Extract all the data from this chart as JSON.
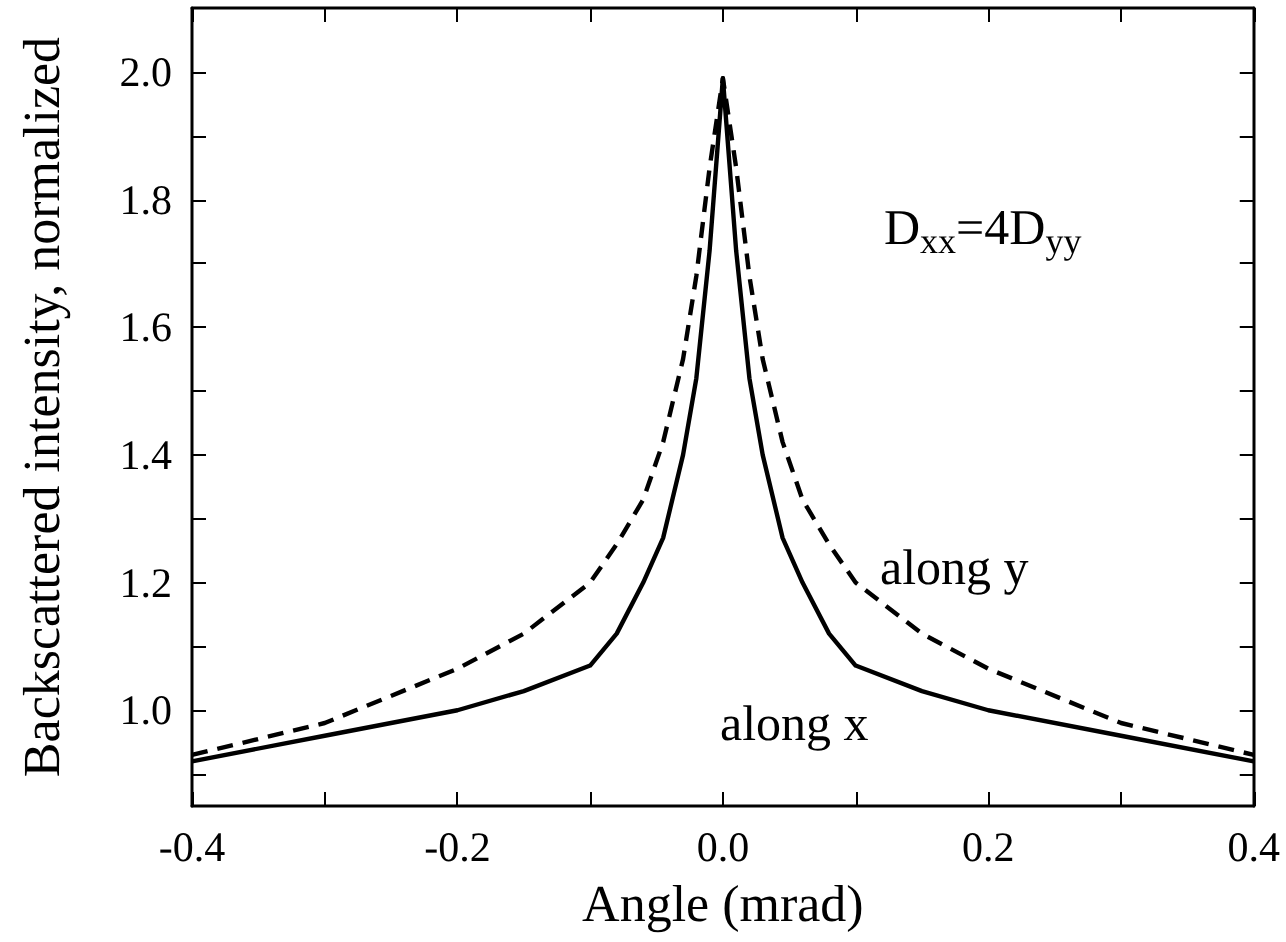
{
  "chart_data": {
    "type": "line",
    "xlabel": "Angle (mrad)",
    "ylabel": "Backscattered intensity, normalized",
    "x": [
      -0.4,
      -0.3,
      -0.2,
      -0.15,
      -0.1,
      -0.08,
      -0.06,
      -0.045,
      -0.03,
      -0.02,
      -0.01,
      0,
      0.01,
      0.02,
      0.03,
      0.045,
      0.06,
      0.08,
      0.1,
      0.15,
      0.2,
      0.3,
      0.4
    ],
    "series": [
      {
        "name": "along x",
        "color": "#000000",
        "line_style": "solid",
        "values": [
          0.92,
          0.96,
          1.0,
          1.03,
          1.07,
          1.12,
          1.2,
          1.27,
          1.4,
          1.52,
          1.72,
          1.99,
          1.72,
          1.52,
          1.4,
          1.27,
          1.2,
          1.12,
          1.07,
          1.03,
          1.0,
          0.96,
          0.92
        ]
      },
      {
        "name": "along y",
        "color": "#000000",
        "line_style": "dashed",
        "values": [
          0.93,
          0.98,
          1.065,
          1.12,
          1.2,
          1.26,
          1.33,
          1.42,
          1.55,
          1.68,
          1.85,
          1.99,
          1.85,
          1.68,
          1.55,
          1.42,
          1.33,
          1.26,
          1.2,
          1.12,
          1.065,
          0.98,
          0.93
        ]
      }
    ],
    "annotations": [
      "D$_{xx}$=4D$_{yy}$"
    ],
    "xlim": [
      -0.4,
      0.4
    ],
    "ylim": [
      0.85,
      2.1
    ],
    "xticks": [
      {
        "value": -0.4,
        "label": "-0.4"
      },
      {
        "value": -0.3,
        "label": null
      },
      {
        "value": -0.2,
        "label": "-0.2"
      },
      {
        "value": -0.1,
        "label": null
      },
      {
        "value": 0,
        "label": "0.0"
      },
      {
        "value": 0.1,
        "label": null
      },
      {
        "value": 0.2,
        "label": "0.2"
      },
      {
        "value": 0.3,
        "label": null
      },
      {
        "value": 0.4,
        "label": "0.4"
      }
    ],
    "yticks": [
      {
        "value": 0.9,
        "label": null
      },
      {
        "value": 1,
        "label": "1.0"
      },
      {
        "value": 1.1,
        "label": null
      },
      {
        "value": 1.2,
        "label": "1.2"
      },
      {
        "value": 1.3,
        "label": null
      },
      {
        "value": 1.4,
        "label": "1.4"
      },
      {
        "value": 1.5,
        "label": null
      },
      {
        "value": 1.6,
        "label": "1.6"
      },
      {
        "value": 1.7,
        "label": null
      },
      {
        "value": 1.8,
        "label": "1.8"
      },
      {
        "value": 1.9,
        "label": null
      },
      {
        "value": 2,
        "label": "2.0"
      }
    ],
    "grid": false,
    "legend": false,
    "marker": "none"
  }
}
